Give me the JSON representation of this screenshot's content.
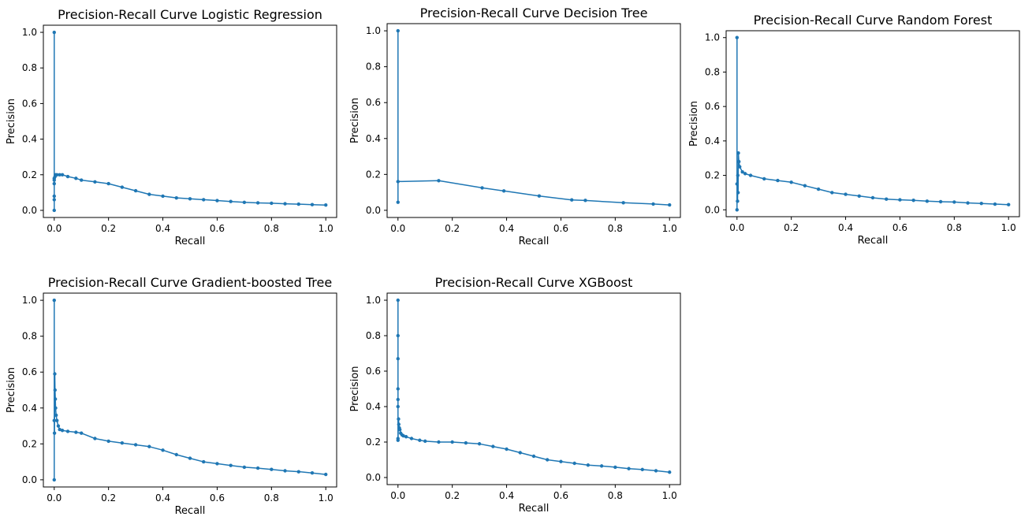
{
  "chart_data": [
    {
      "type": "line",
      "title": "Precision-Recall Curve Logistic Regression",
      "xlabel": "Recall",
      "ylabel": "Precision",
      "xlim": [
        -0.04,
        1.04
      ],
      "ylim": [
        -0.04,
        1.04
      ],
      "xticks": [
        "0.0",
        "0.2",
        "0.4",
        "0.6",
        "0.8",
        "1.0"
      ],
      "yticks": [
        "0.0",
        "0.2",
        "0.4",
        "0.6",
        "0.8",
        "1.0"
      ],
      "series": [
        {
          "color": "#1f77b4",
          "x": [
            0,
            0,
            0,
            0,
            0,
            0,
            0,
            0.003,
            0.005,
            0.01,
            0.02,
            0.03,
            0.05,
            0.08,
            0.1,
            0.15,
            0.2,
            0.25,
            0.3,
            0.35,
            0.4,
            0.45,
            0.5,
            0.55,
            0.6,
            0.65,
            0.7,
            0.75,
            0.8,
            0.85,
            0.9,
            0.95,
            1.0
          ],
          "y": [
            1.0,
            0.0,
            0.18,
            0.08,
            0.15,
            0.06,
            0.17,
            0.19,
            0.2,
            0.2,
            0.2,
            0.2,
            0.19,
            0.18,
            0.17,
            0.16,
            0.15,
            0.13,
            0.11,
            0.09,
            0.08,
            0.07,
            0.065,
            0.06,
            0.055,
            0.05,
            0.045,
            0.042,
            0.04,
            0.037,
            0.035,
            0.032,
            0.03
          ]
        }
      ]
    },
    {
      "type": "line",
      "title": "Precision-Recall Curve Decision Tree",
      "xlabel": "Recall",
      "ylabel": "Precision",
      "xlim": [
        -0.04,
        1.04
      ],
      "ylim": [
        -0.04,
        1.04
      ],
      "xticks": [
        "0.0",
        "0.2",
        "0.4",
        "0.6",
        "0.8",
        "1.0"
      ],
      "yticks": [
        "0.0",
        "0.2",
        "0.4",
        "0.6",
        "0.8",
        "1.0"
      ],
      "series": [
        {
          "color": "#1f77b4",
          "x": [
            0,
            0,
            0,
            0.15,
            0.31,
            0.39,
            0.52,
            0.64,
            0.69,
            0.83,
            0.94,
            1.0
          ],
          "y": [
            1.0,
            0.045,
            0.16,
            0.165,
            0.125,
            0.108,
            0.08,
            0.058,
            0.055,
            0.042,
            0.035,
            0.03
          ]
        }
      ]
    },
    {
      "type": "line",
      "title": "Precision-Recall Curve Random Forest",
      "xlabel": "Recall",
      "ylabel": "Precision",
      "xlim": [
        -0.04,
        1.04
      ],
      "ylim": [
        -0.04,
        1.04
      ],
      "xticks": [
        "0.0",
        "0.2",
        "0.4",
        "0.6",
        "0.8",
        "1.0"
      ],
      "yticks": [
        "0.0",
        "0.2",
        "0.4",
        "0.6",
        "0.8",
        "1.0"
      ],
      "series": [
        {
          "color": "#1f77b4",
          "x": [
            0,
            0,
            0,
            0.002,
            0.003,
            0.004,
            0.005,
            0.007,
            0.01,
            0.02,
            0.03,
            0.05,
            0.1,
            0.15,
            0.2,
            0.25,
            0.3,
            0.35,
            0.4,
            0.45,
            0.5,
            0.55,
            0.6,
            0.65,
            0.7,
            0.75,
            0.8,
            0.85,
            0.9,
            0.95,
            1.0
          ],
          "y": [
            1.0,
            0.0,
            0.15,
            0.05,
            0.2,
            0.1,
            0.33,
            0.28,
            0.25,
            0.22,
            0.21,
            0.2,
            0.18,
            0.17,
            0.16,
            0.14,
            0.12,
            0.1,
            0.09,
            0.08,
            0.07,
            0.062,
            0.058,
            0.055,
            0.05,
            0.047,
            0.045,
            0.04,
            0.037,
            0.033,
            0.03
          ]
        }
      ]
    },
    {
      "type": "line",
      "title": "Precision-Recall Curve Gradient-boosted Tree",
      "xlabel": "Recall",
      "ylabel": "Precision",
      "xlim": [
        -0.04,
        1.04
      ],
      "ylim": [
        -0.04,
        1.04
      ],
      "xticks": [
        "0.0",
        "0.2",
        "0.4",
        "0.6",
        "0.8",
        "1.0"
      ],
      "yticks": [
        "0.0",
        "0.2",
        "0.4",
        "0.6",
        "0.8",
        "1.0"
      ],
      "series": [
        {
          "color": "#1f77b4",
          "x": [
            0,
            0,
            0,
            0.001,
            0.002,
            0.003,
            0.004,
            0.005,
            0.007,
            0.01,
            0.015,
            0.02,
            0.03,
            0.05,
            0.08,
            0.1,
            0.15,
            0.2,
            0.25,
            0.3,
            0.35,
            0.4,
            0.45,
            0.5,
            0.55,
            0.6,
            0.65,
            0.7,
            0.75,
            0.8,
            0.85,
            0.9,
            0.95,
            1.0
          ],
          "y": [
            1.0,
            0.0,
            0.33,
            0.26,
            0.59,
            0.5,
            0.45,
            0.4,
            0.36,
            0.33,
            0.3,
            0.28,
            0.275,
            0.27,
            0.265,
            0.26,
            0.23,
            0.215,
            0.205,
            0.195,
            0.185,
            0.165,
            0.14,
            0.12,
            0.1,
            0.09,
            0.08,
            0.07,
            0.065,
            0.058,
            0.05,
            0.045,
            0.038,
            0.03
          ]
        }
      ]
    },
    {
      "type": "line",
      "title": "Precision-Recall Curve XGBoost",
      "xlabel": "Recall",
      "ylabel": "Precision",
      "xlim": [
        -0.04,
        1.04
      ],
      "ylim": [
        -0.04,
        1.04
      ],
      "xticks": [
        "0.0",
        "0.2",
        "0.4",
        "0.6",
        "0.8",
        "1.0"
      ],
      "yticks": [
        "0.0",
        "0.2",
        "0.4",
        "0.6",
        "0.8",
        "1.0"
      ],
      "series": [
        {
          "color": "#1f77b4",
          "x": [
            0,
            0,
            0,
            0,
            0,
            0,
            0,
            0,
            0.002,
            0.003,
            0.005,
            0.007,
            0.01,
            0.015,
            0.02,
            0.03,
            0.05,
            0.08,
            0.1,
            0.15,
            0.2,
            0.25,
            0.3,
            0.35,
            0.4,
            0.45,
            0.5,
            0.55,
            0.6,
            0.65,
            0.7,
            0.75,
            0.8,
            0.85,
            0.9,
            0.95,
            1.0
          ],
          "y": [
            1.0,
            0.8,
            0.67,
            0.5,
            0.44,
            0.4,
            0.22,
            0.21,
            0.33,
            0.3,
            0.28,
            0.27,
            0.25,
            0.24,
            0.235,
            0.23,
            0.22,
            0.21,
            0.205,
            0.2,
            0.2,
            0.195,
            0.19,
            0.175,
            0.16,
            0.14,
            0.12,
            0.1,
            0.09,
            0.08,
            0.07,
            0.065,
            0.058,
            0.05,
            0.045,
            0.038,
            0.03
          ]
        }
      ]
    }
  ]
}
